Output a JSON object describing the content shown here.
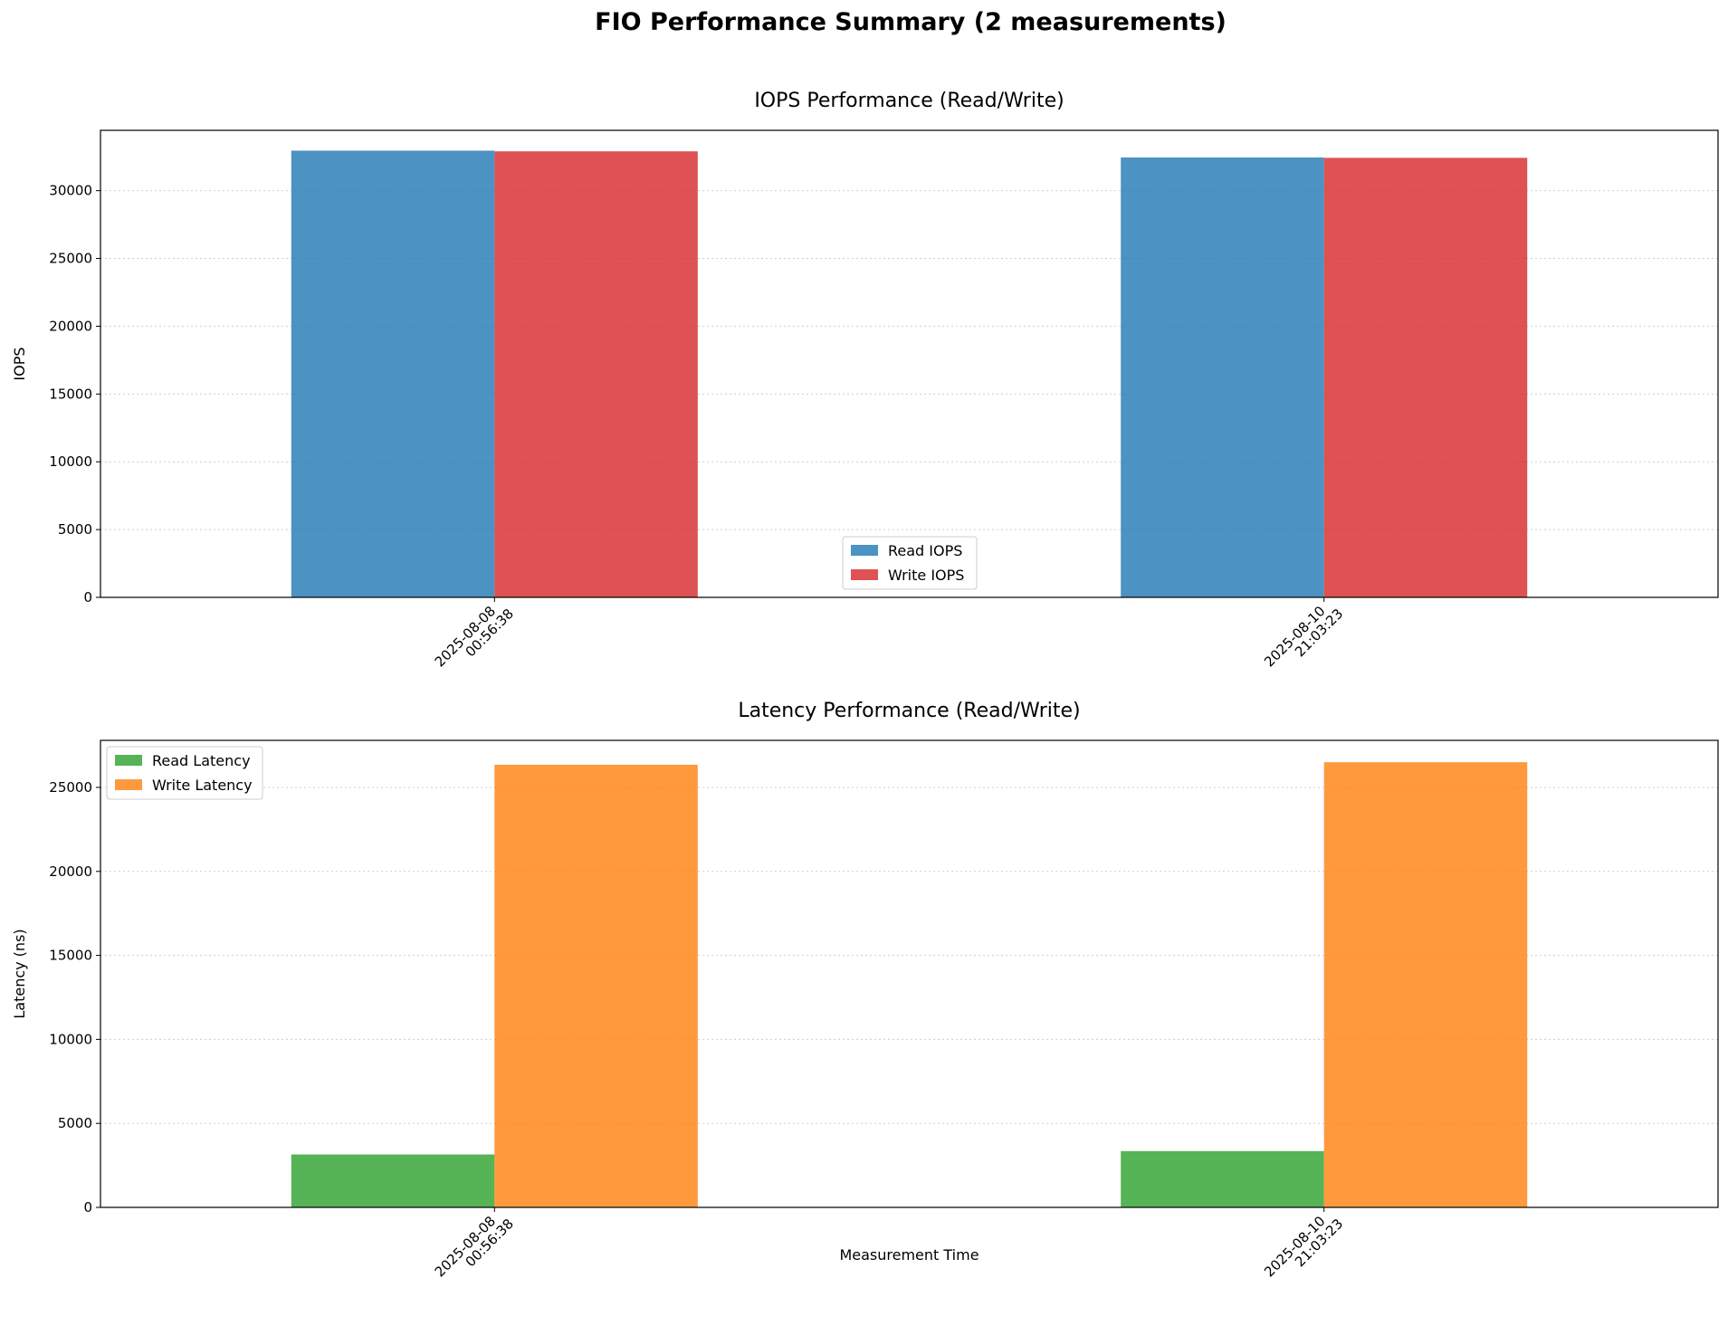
{
  "title": "FIO Performance Summary (2 measurements)",
  "chart_data": [
    {
      "type": "bar",
      "title": "IOPS Performance (Read/Write)",
      "xlabel": "",
      "ylabel": "IOPS",
      "categories": [
        "2025-08-08\n00:56:38",
        "2025-08-10\n21:03:23"
      ],
      "series": [
        {
          "name": "Read IOPS",
          "values": [
            32950,
            32450
          ],
          "color": "#1f77b4"
        },
        {
          "name": "Write IOPS",
          "values": [
            32900,
            32420
          ],
          "color": "#d62728"
        }
      ],
      "ylim": [
        0,
        34450
      ],
      "yticks": [
        0,
        5000,
        10000,
        15000,
        20000,
        25000,
        30000
      ],
      "grid": "y-dotted",
      "legend": "lower-center"
    },
    {
      "type": "bar",
      "title": "Latency Performance (Read/Write)",
      "xlabel": "Measurement Time",
      "ylabel": "Latency (ns)",
      "categories": [
        "2025-08-08\n00:56:38",
        "2025-08-10\n21:03:23"
      ],
      "series": [
        {
          "name": "Read Latency",
          "values": [
            3150,
            3350
          ],
          "color": "#2ca02c"
        },
        {
          "name": "Write Latency",
          "values": [
            26350,
            26500
          ],
          "color": "#ff7f0e"
        }
      ],
      "ylim": [
        0,
        27800
      ],
      "yticks": [
        0,
        5000,
        10000,
        15000,
        20000,
        25000
      ],
      "grid": "y-dotted",
      "legend": "upper-left"
    }
  ]
}
